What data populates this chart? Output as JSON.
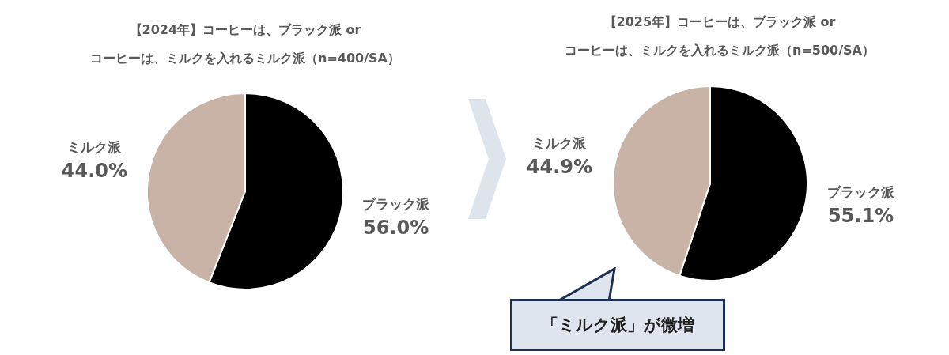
{
  "chart_data": [
    {
      "type": "pie",
      "title": "【2024年】コーヒーは、ブラック派 or\nコーヒーは、ミルクを入れるミルク派（n=400/SA）",
      "categories": [
        "ブラック派",
        "ミルク派"
      ],
      "values": [
        56.0,
        44.0
      ],
      "value_labels": [
        "56.0%",
        "44.0%"
      ],
      "colors": [
        "#000000",
        "#c9b2a6"
      ],
      "legend": false
    },
    {
      "type": "pie",
      "title": "【2025年】コーヒーは、ブラック派 or\nコーヒーは、ミルクを入れるミルク派（n=500/SA）",
      "categories": [
        "ブラック派",
        "ミルク派"
      ],
      "values": [
        55.1,
        44.9
      ],
      "value_labels": [
        "55.1%",
        "44.9%"
      ],
      "colors": [
        "#000000",
        "#c9b2a6"
      ],
      "legend": false,
      "annotations": [
        "「ミルク派」が微増"
      ]
    }
  ]
}
